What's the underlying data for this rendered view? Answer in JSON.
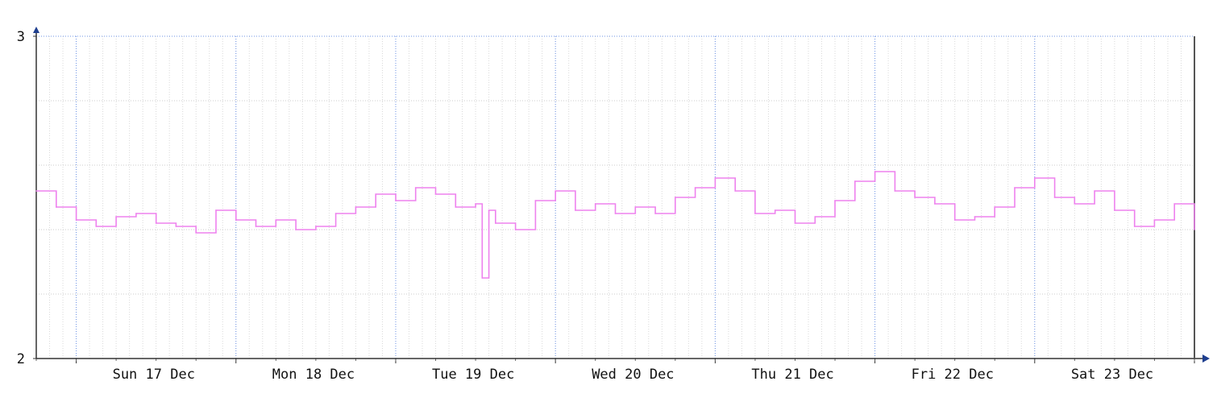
{
  "chart_data": {
    "type": "line",
    "title": "",
    "xlabel": "",
    "ylabel": "",
    "x_ticks": [
      {
        "label": "Sun 17 Dec",
        "date": "2023-12-17"
      },
      {
        "label": "Mon 18 Dec",
        "date": "2023-12-18"
      },
      {
        "label": "Tue 19 Dec",
        "date": "2023-12-19"
      },
      {
        "label": "Wed 20 Dec",
        "date": "2023-12-20"
      },
      {
        "label": "Thu 21 Dec",
        "date": "2023-12-21"
      },
      {
        "label": "Fri 22 Dec",
        "date": "2023-12-22"
      },
      {
        "label": "Sat 23 Dec",
        "date": "2023-12-23"
      }
    ],
    "y_ticks": [
      "2",
      "3"
    ],
    "ylim": [
      2,
      3
    ],
    "xlim": [
      "2023-12-16 06:00",
      "2023-12-23 12:00"
    ],
    "grid": true,
    "step": true,
    "series": [
      {
        "color": "#ee82ee",
        "x": [
          "2023-12-16 06:00",
          "2023-12-16 09:00",
          "2023-12-16 12:00",
          "2023-12-16 15:00",
          "2023-12-16 18:00",
          "2023-12-16 21:00",
          "2023-12-17 00:00",
          "2023-12-17 03:00",
          "2023-12-17 06:00",
          "2023-12-17 09:00",
          "2023-12-17 12:00",
          "2023-12-17 15:00",
          "2023-12-17 18:00",
          "2023-12-17 21:00",
          "2023-12-18 00:00",
          "2023-12-18 03:00",
          "2023-12-18 06:00",
          "2023-12-18 09:00",
          "2023-12-18 12:00",
          "2023-12-18 15:00",
          "2023-12-18 18:00",
          "2023-12-18 21:00",
          "2023-12-19 00:00",
          "2023-12-19 01:00",
          "2023-12-19 02:00",
          "2023-12-19 03:00",
          "2023-12-19 06:00",
          "2023-12-19 09:00",
          "2023-12-19 12:00",
          "2023-12-19 15:00",
          "2023-12-19 18:00",
          "2023-12-19 21:00",
          "2023-12-20 00:00",
          "2023-12-20 03:00",
          "2023-12-20 06:00",
          "2023-12-20 09:00",
          "2023-12-20 12:00",
          "2023-12-20 15:00",
          "2023-12-20 18:00",
          "2023-12-20 21:00",
          "2023-12-21 00:00",
          "2023-12-21 03:00",
          "2023-12-21 06:00",
          "2023-12-21 09:00",
          "2023-12-21 12:00",
          "2023-12-21 15:00",
          "2023-12-21 18:00",
          "2023-12-21 21:00",
          "2023-12-22 00:00",
          "2023-12-22 03:00",
          "2023-12-22 06:00",
          "2023-12-22 09:00",
          "2023-12-22 12:00",
          "2023-12-22 15:00",
          "2023-12-22 18:00",
          "2023-12-22 21:00",
          "2023-12-23 00:00",
          "2023-12-23 03:00",
          "2023-12-23 06:00",
          "2023-12-23 09:00",
          "2023-12-23 12:00"
        ],
        "values": [
          2.52,
          2.47,
          2.43,
          2.41,
          2.44,
          2.45,
          2.42,
          2.41,
          2.39,
          2.46,
          2.43,
          2.41,
          2.43,
          2.4,
          2.41,
          2.45,
          2.47,
          2.51,
          2.49,
          2.53,
          2.51,
          2.47,
          2.48,
          2.25,
          2.46,
          2.42,
          2.4,
          2.49,
          2.52,
          2.46,
          2.48,
          2.45,
          2.47,
          2.45,
          2.5,
          2.53,
          2.56,
          2.52,
          2.45,
          2.46,
          2.42,
          2.44,
          2.49,
          2.55,
          2.58,
          2.52,
          2.5,
          2.48,
          2.43,
          2.44,
          2.47,
          2.53,
          2.56,
          2.5,
          2.48,
          2.52,
          2.46,
          2.41,
          2.43,
          2.48,
          2.4
        ]
      }
    ]
  }
}
